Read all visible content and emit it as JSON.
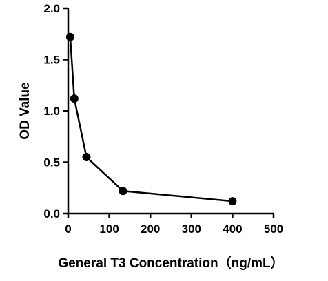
{
  "chart_data": {
    "type": "line",
    "title": "",
    "xlabel": "General T3 Concentration（ng/mL）",
    "ylabel": "OD Value",
    "xlim": [
      0,
      500
    ],
    "ylim": [
      0,
      2.0
    ],
    "x_ticks": [
      0,
      100,
      200,
      300,
      400,
      500
    ],
    "y_ticks": [
      0.0,
      0.5,
      1.0,
      1.5,
      2.0
    ],
    "x_tick_labels": [
      "0",
      "100",
      "200",
      "300",
      "400",
      "500"
    ],
    "y_tick_labels": [
      "0.0",
      "0.5",
      "1.0",
      "1.5",
      "2.0"
    ],
    "grid": false,
    "legend": "none",
    "series": [
      {
        "x": [
          4.9,
          14.8,
          44.4,
          133.3,
          400
        ],
        "y": [
          1.72,
          1.12,
          0.55,
          0.22,
          0.12
        ]
      }
    ],
    "colors": {
      "line": "#000000",
      "marker": "#000000",
      "axis": "#000000"
    }
  }
}
